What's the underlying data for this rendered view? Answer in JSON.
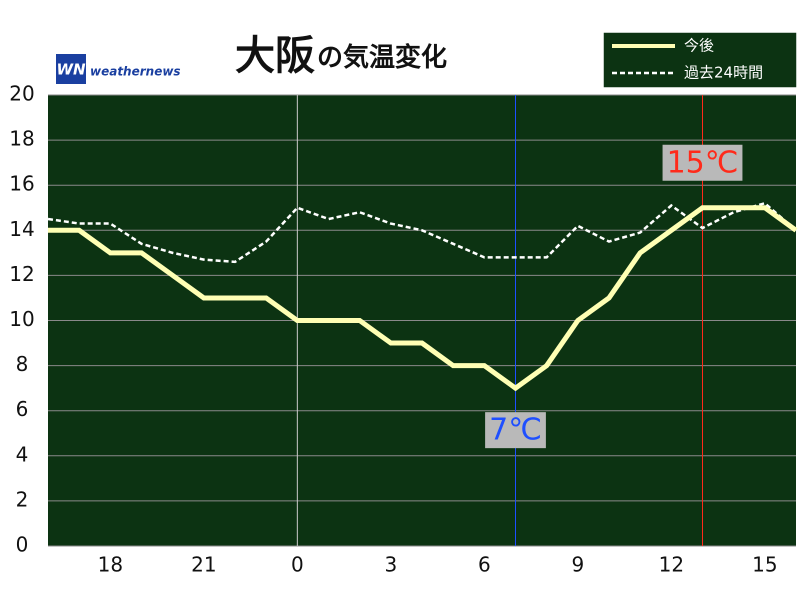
{
  "chart_data": {
    "type": "line",
    "title_place": "大阪",
    "title_rest": "の気温変化",
    "logo": "weathernews",
    "categories": [
      null,
      null,
      "18",
      null,
      null,
      "21",
      null,
      null,
      "0",
      null,
      null,
      "3",
      null,
      null,
      "6",
      null,
      null,
      "9",
      null,
      null,
      "12",
      null,
      null,
      "15",
      null
    ],
    "series": [
      {
        "name": "今後",
        "color": "#ffffb4",
        "style": "solid",
        "values": [
          14,
          14,
          13,
          13,
          12,
          11,
          11,
          11,
          10,
          10,
          10,
          9,
          9,
          8,
          8,
          7,
          8,
          10,
          11,
          13,
          14,
          15,
          15,
          15,
          14
        ]
      },
      {
        "name": "過去24時間",
        "color": "#ffffff",
        "style": "dashed",
        "values": [
          14.5,
          14.3,
          14.3,
          13.4,
          13,
          12.7,
          12.6,
          13.5,
          15,
          14.5,
          14.8,
          14.3,
          14,
          13.4,
          12.8,
          12.8,
          12.8,
          14.2,
          13.5,
          13.9,
          15.1,
          14.1,
          14.8,
          15.2,
          14
        ]
      }
    ],
    "annotations": [
      {
        "text": "7℃",
        "color": "#1e4fff",
        "kind": "min"
      },
      {
        "text": "15℃",
        "color": "#ff2a1a",
        "kind": "max"
      }
    ],
    "ylim": [
      0,
      20
    ],
    "yticks": [
      0,
      2,
      4,
      6,
      8,
      10,
      12,
      14,
      16,
      18,
      20
    ],
    "grid": true,
    "legend": "upper right",
    "background": "#0c3312"
  }
}
